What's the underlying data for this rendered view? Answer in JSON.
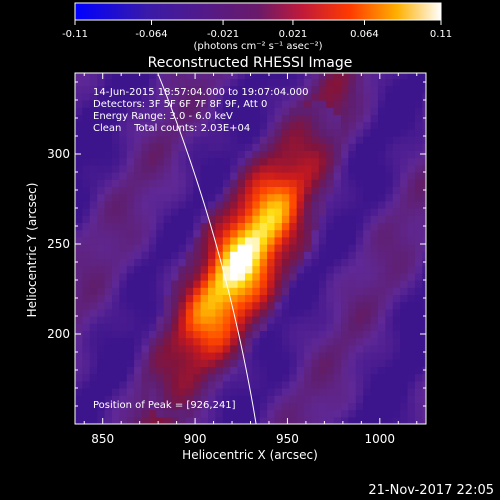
{
  "chart_data": {
    "type": "heatmap",
    "title": "Reconstructed RHESSI Image",
    "xlabel": "Heliocentric X (arcsec)",
    "ylabel": "Heliocentric Y (arcsec)",
    "xlim": [
      835,
      1025
    ],
    "ylim": [
      150,
      345
    ],
    "x_ticks": [
      850,
      900,
      950,
      1000
    ],
    "y_ticks": [
      200,
      250,
      300
    ],
    "colorbar": {
      "ticks": [
        "-0.11",
        "-0.064",
        "-0.021",
        "0.021",
        "0.064",
        "0.11"
      ],
      "range": [
        -0.11,
        0.11
      ],
      "units_label": "(photons cm⁻² s⁻¹ asec⁻²)"
    },
    "info_lines": [
      "14-Jun-2015 18:57:04.000 to 19:07:04.000",
      "Detectors: 3F 5F 6F 7F 8F 9F, Att 0",
      "Energy Range: 3.0 - 6.0 keV",
      "Clean    Total counts: 2.03E+04"
    ],
    "peak_label": "Position of Peak = [926,241]",
    "peak": [
      926,
      241
    ],
    "timestamp": "21-Nov-2017 22:05"
  }
}
